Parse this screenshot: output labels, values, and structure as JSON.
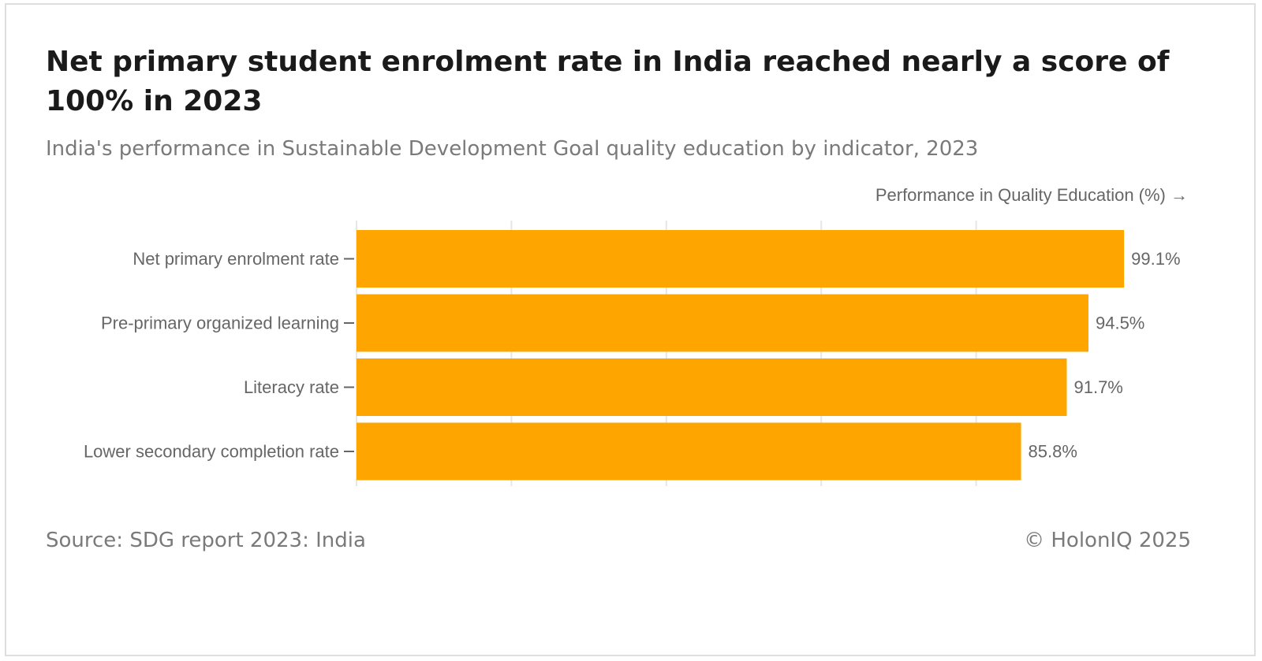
{
  "header": {
    "title": "Net primary student enrolment rate in India reached nearly a score of 100% in 2023",
    "subtitle": "India's performance in Sustainable Development Goal quality education by indicator, 2023"
  },
  "footer": {
    "source": "Source: SDG report 2023: India",
    "copyright": "© HolonIQ 2025"
  },
  "colors": {
    "bar": "#FFA500",
    "grid": "#e6e6e6",
    "tick_text": "#666666",
    "value_text": "#666666"
  },
  "chart_data": {
    "type": "bar",
    "orientation": "horizontal",
    "title": "Net primary student enrolment rate in India reached nearly a score of 100% in 2023",
    "subtitle": "India's performance in Sustainable Development Goal quality education by indicator, 2023",
    "xlabel": "Performance in Quality Education (%) →",
    "ylabel": "",
    "categories": [
      "Net primary enrolment rate",
      "Pre-primary organized learning",
      "Literacy rate",
      "Lower secondary completion rate"
    ],
    "values": [
      99.1,
      94.5,
      91.7,
      85.8
    ],
    "value_labels": [
      "99.1%",
      "94.5%",
      "91.7%",
      "85.8%"
    ],
    "xlim": [
      0,
      100
    ],
    "grid_x": [
      0,
      20,
      40,
      60,
      80,
      100
    ],
    "grid": true,
    "legend": "none"
  }
}
